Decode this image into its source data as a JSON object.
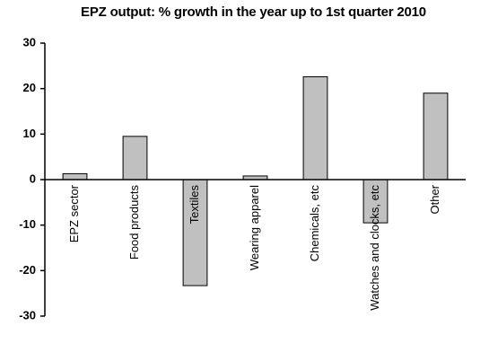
{
  "chart_data": {
    "type": "bar",
    "title": "EPZ output: % growth in the year up to 1st quarter 2010",
    "categories": [
      "EPZ sector",
      "Food products",
      "Textiles",
      "Wearing apparel",
      "Chemicals, etc",
      "Watches and clocks, etc",
      "Other"
    ],
    "values": [
      1.3,
      9.5,
      -23.3,
      0.8,
      22.6,
      -9.5,
      19.0
    ],
    "color": "#c0c0c0",
    "ylim": [
      -30,
      30
    ],
    "yticks": [
      -30,
      -20,
      -10,
      0,
      10,
      20,
      30
    ],
    "grid": false
  }
}
